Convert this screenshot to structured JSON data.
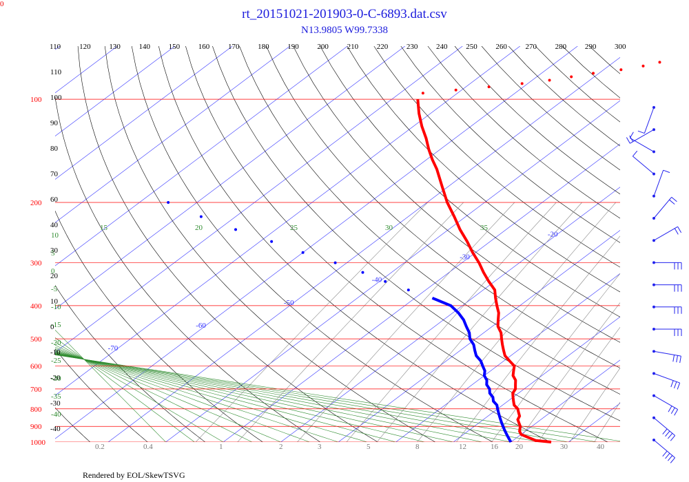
{
  "header": {
    "corner_label": "0",
    "title": "rt_20151021-201903-0-C-6893.dat.csv",
    "subtitle": "N13.9805 W99.7338"
  },
  "footer": {
    "credit": "Rendered by EOL/SkewTSVG"
  },
  "colors": {
    "temperature": "#ff0000",
    "dewpoint": "#0000ff",
    "isobar": "#ff0000",
    "isotherm": "#3333ff",
    "dry_adiabat": "#000000",
    "moist_adiabat": "#2e8b2e",
    "mixing_ratio": "#888888",
    "wind_barb": "#2222ee",
    "title_text": "#1a1adc"
  },
  "chart_data": {
    "type": "skew-t log-p sounding",
    "title": "rt_20151021-201903-0-C-6893.dat.csv",
    "subtitle": "N13.9805 W99.7338",
    "pressure_axis": {
      "unit": "hPa",
      "scale": "log",
      "range": [
        1000,
        100
      ],
      "ticks": [
        100,
        200,
        300,
        400,
        500,
        600,
        700,
        800,
        900,
        1000
      ]
    },
    "potential_temperature_labels": [
      110,
      120,
      130,
      140,
      150,
      160,
      170,
      180,
      190,
      200,
      210,
      220,
      230,
      240,
      250,
      260,
      270,
      280,
      290,
      300
    ],
    "isotherm_labels": [
      -100,
      -90,
      -80,
      -70,
      -60,
      -50,
      -40,
      -30,
      -20,
      -10,
      0,
      10,
      20,
      30
    ],
    "dry_adiabat_left_labels": [
      110,
      100,
      90,
      80,
      70,
      60,
      40,
      30,
      20,
      10,
      0,
      -10,
      -20,
      -30,
      -40
    ],
    "moist_adiabat_labels": {
      "top": [
        15,
        20,
        25,
        30,
        35
      ],
      "left": [
        10,
        5,
        0,
        -5,
        -10,
        -15,
        -20,
        -25,
        -30,
        -35,
        -40
      ]
    },
    "mixing_ratio_labels": [
      "0.2",
      "0.4",
      "1",
      "2",
      "3",
      "5",
      "8",
      "12",
      "16",
      "20"
    ],
    "bottom_isotherm_labels": [
      "30",
      "40"
    ],
    "series": [
      {
        "kind": "temperature",
        "points": [
          {
            "p": 1000,
            "t": 27
          },
          {
            "p": 990,
            "t": 24
          },
          {
            "p": 975,
            "t": 22.5
          },
          {
            "p": 960,
            "t": 21
          },
          {
            "p": 950,
            "t": 20
          },
          {
            "p": 930,
            "t": 19
          },
          {
            "p": 900,
            "t": 18
          },
          {
            "p": 880,
            "t": 17
          },
          {
            "p": 860,
            "t": 16
          },
          {
            "p": 840,
            "t": 15.5
          },
          {
            "p": 820,
            "t": 14.5
          },
          {
            "p": 800,
            "t": 13.5
          },
          {
            "p": 780,
            "t": 12
          },
          {
            "p": 760,
            "t": 11
          },
          {
            "p": 740,
            "t": 10
          },
          {
            "p": 720,
            "t": 9
          },
          {
            "p": 700,
            "t": 8.5
          },
          {
            "p": 680,
            "t": 7.5
          },
          {
            "p": 660,
            "t": 6.5
          },
          {
            "p": 640,
            "t": 5
          },
          {
            "p": 620,
            "t": 4
          },
          {
            "p": 600,
            "t": 3
          },
          {
            "p": 580,
            "t": 1
          },
          {
            "p": 560,
            "t": -1
          },
          {
            "p": 540,
            "t": -2.5
          },
          {
            "p": 520,
            "t": -4
          },
          {
            "p": 500,
            "t": -5.5
          },
          {
            "p": 480,
            "t": -7
          },
          {
            "p": 460,
            "t": -9
          },
          {
            "p": 440,
            "t": -10.5
          },
          {
            "p": 420,
            "t": -12
          },
          {
            "p": 400,
            "t": -14
          },
          {
            "p": 380,
            "t": -16
          },
          {
            "p": 360,
            "t": -18
          },
          {
            "p": 340,
            "t": -21
          },
          {
            "p": 320,
            "t": -24
          },
          {
            "p": 300,
            "t": -27
          },
          {
            "p": 280,
            "t": -30.5
          },
          {
            "p": 260,
            "t": -34
          },
          {
            "p": 240,
            "t": -38
          },
          {
            "p": 220,
            "t": -42
          },
          {
            "p": 200,
            "t": -46.5
          },
          {
            "p": 180,
            "t": -51
          },
          {
            "p": 160,
            "t": -56
          },
          {
            "p": 150,
            "t": -59
          },
          {
            "p": 140,
            "t": -62
          },
          {
            "p": 130,
            "t": -65
          },
          {
            "p": 120,
            "t": -68.5
          },
          {
            "p": 110,
            "t": -72
          },
          {
            "p": 100,
            "t": -75.5
          }
        ]
      },
      {
        "kind": "upper temperature (sparse)",
        "points": [
          {
            "p": 96,
            "t": -76
          },
          {
            "p": 94,
            "t": -71
          },
          {
            "p": 92,
            "t": -66
          },
          {
            "p": 90,
            "t": -61
          },
          {
            "p": 88,
            "t": -57
          },
          {
            "p": 86,
            "t": -54
          },
          {
            "p": 84,
            "t": -51
          },
          {
            "p": 82,
            "t": -47
          },
          {
            "p": 80,
            "t": -44
          },
          {
            "p": 78,
            "t": -42
          }
        ]
      },
      {
        "kind": "dewpoint",
        "points": [
          {
            "p": 1000,
            "t": 20
          },
          {
            "p": 980,
            "t": 19
          },
          {
            "p": 960,
            "t": 18
          },
          {
            "p": 940,
            "t": 17
          },
          {
            "p": 920,
            "t": 16
          },
          {
            "p": 900,
            "t": 15
          },
          {
            "p": 880,
            "t": 14
          },
          {
            "p": 860,
            "t": 13
          },
          {
            "p": 840,
            "t": 12
          },
          {
            "p": 820,
            "t": 11
          },
          {
            "p": 800,
            "t": 10
          },
          {
            "p": 780,
            "t": 9
          },
          {
            "p": 760,
            "t": 7.5
          },
          {
            "p": 740,
            "t": 6.5
          },
          {
            "p": 720,
            "t": 5
          },
          {
            "p": 700,
            "t": 4
          },
          {
            "p": 680,
            "t": 2.5
          },
          {
            "p": 660,
            "t": 1.5
          },
          {
            "p": 640,
            "t": 0
          },
          {
            "p": 620,
            "t": -1
          },
          {
            "p": 600,
            "t": -2.5
          },
          {
            "p": 580,
            "t": -4
          },
          {
            "p": 560,
            "t": -6
          },
          {
            "p": 540,
            "t": -7.5
          },
          {
            "p": 520,
            "t": -9
          },
          {
            "p": 500,
            "t": -11
          },
          {
            "p": 480,
            "t": -12.5
          },
          {
            "p": 460,
            "t": -14.5
          },
          {
            "p": 440,
            "t": -16.5
          },
          {
            "p": 420,
            "t": -19
          },
          {
            "p": 400,
            "t": -22
          },
          {
            "p": 380,
            "t": -27
          },
          {
            "p": 360,
            "t": -33
          },
          {
            "p": 340,
            "t": -39
          },
          {
            "p": 320,
            "t": -45
          },
          {
            "p": 300,
            "t": -52
          },
          {
            "p": 280,
            "t": -60
          },
          {
            "p": 260,
            "t": -68
          },
          {
            "p": 240,
            "t": -77
          },
          {
            "p": 220,
            "t": -86
          },
          {
            "p": 200,
            "t": -95
          }
        ]
      }
    ],
    "wind_barbs": [
      {
        "p": 90,
        "speed_kt": 10,
        "dir_deg": 200
      },
      {
        "p": 80,
        "speed_kt": 15,
        "dir_deg": 240
      },
      {
        "p": 60,
        "speed_kt": 10,
        "dir_deg": 300
      },
      {
        "p": 50,
        "speed_kt": 10,
        "dir_deg": 310
      },
      {
        "p": 40,
        "speed_kt": 10,
        "dir_deg": 20
      },
      {
        "p": 30,
        "speed_kt": 15,
        "dir_deg": 40
      },
      {
        "p": 20,
        "speed_kt": 15,
        "dir_deg": 60
      },
      {
        "p": 10,
        "speed_kt": 25,
        "dir_deg": 90
      },
      {
        "p": 0,
        "speed_kt": 25,
        "dir_deg": 90
      },
      {
        "p": -10,
        "speed_kt": 25,
        "dir_deg": 90
      },
      {
        "p": -20,
        "speed_kt": 30,
        "dir_deg": 90
      },
      {
        "p": -30,
        "speed_kt": 30,
        "dir_deg": 100
      },
      {
        "p": -40,
        "speed_kt": 30,
        "dir_deg": 110
      },
      {
        "p": -50,
        "speed_kt": 30,
        "dir_deg": 120
      },
      {
        "p": -60,
        "speed_kt": 35,
        "dir_deg": 130
      },
      {
        "p": -70,
        "speed_kt": 35,
        "dir_deg": 130
      }
    ]
  }
}
